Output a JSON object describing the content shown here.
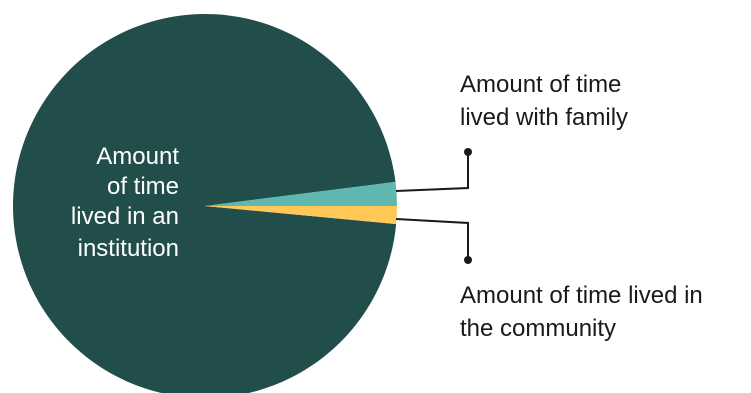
{
  "chart_data": {
    "type": "pie",
    "slices": [
      {
        "label": "Amount of time lived in an institution",
        "value": 96.5,
        "color": "#214E4B"
      },
      {
        "label": "Amount of time lived with family",
        "value": 2.0,
        "color": "#5FB8B0"
      },
      {
        "label": "Amount of time lived in the community",
        "value": 1.5,
        "color": "#FFC857"
      }
    ],
    "labels": {
      "institution": [
        "Amount",
        "of time",
        "lived in an",
        "institution"
      ],
      "family": [
        "Amount of time",
        "lived with family"
      ],
      "community": [
        "Amount of time lived in",
        "the community"
      ]
    },
    "title": "",
    "legend": "callouts-right"
  }
}
